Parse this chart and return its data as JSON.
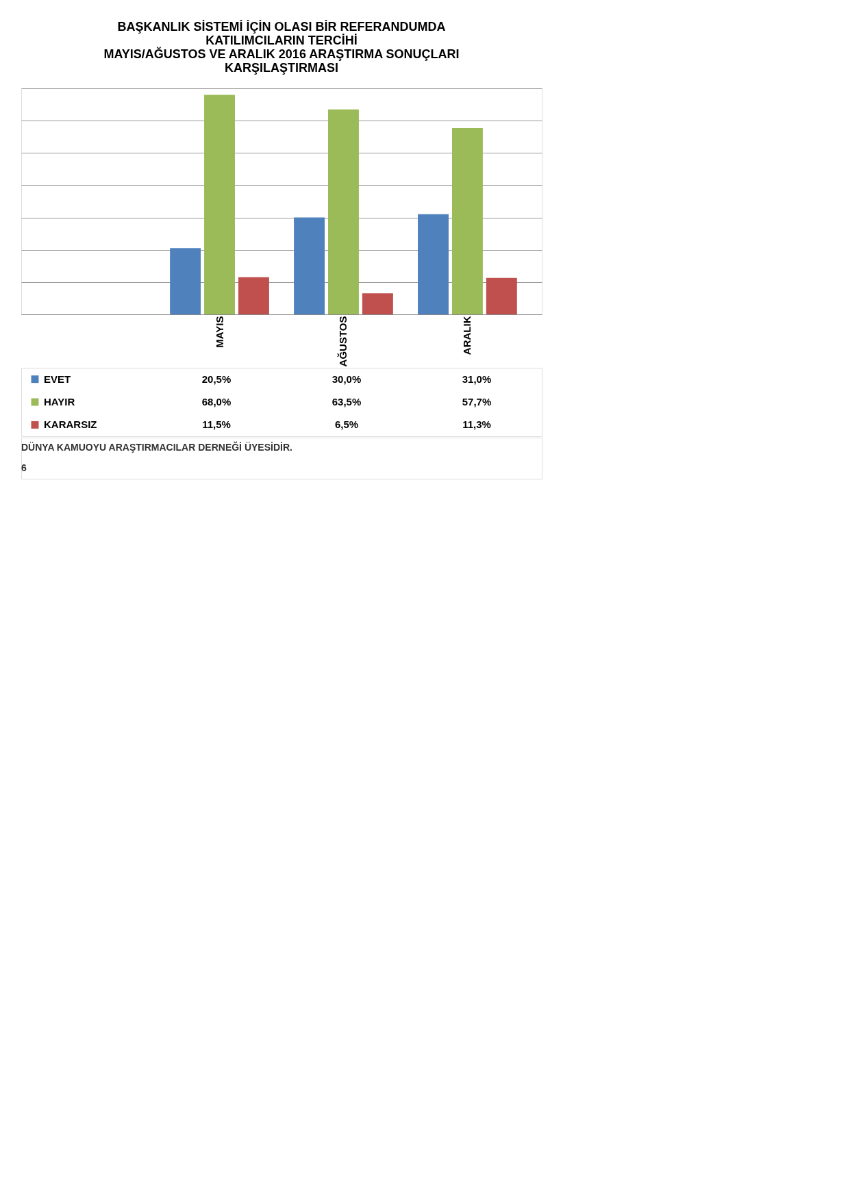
{
  "chart_data": {
    "type": "bar",
    "title": "BAŞKANLIK SİSTEMİ İÇİN OLASI BİR REFERANDUMDA\nKATILIMCILARIN TERCİHİ\nMAYIS/AĞUSTOS VE ARALIK 2016 ARAŞTIRMA SONUÇLARI\nKARŞILAŞTIRMASI",
    "categories": [
      "MAYIS",
      "AĞUSTOS",
      "ARALIK"
    ],
    "series": [
      {
        "name": "EVET",
        "color": "#4f81bd",
        "values": [
          20.5,
          30.0,
          31.0
        ],
        "value_labels": [
          "20,5%",
          "30,0%",
          "31,0%"
        ]
      },
      {
        "name": "HAYIR",
        "color": "#9bbb59",
        "values": [
          68.0,
          63.5,
          57.7
        ],
        "value_labels": [
          "68,0%",
          "63,5%",
          "57,7%"
        ]
      },
      {
        "name": "KARARSIZ",
        "color": "#c0504d",
        "values": [
          11.5,
          6.5,
          11.3
        ],
        "value_labels": [
          "11,5%",
          "6,5%",
          "11,3%"
        ]
      }
    ],
    "ylim": [
      0,
      70
    ],
    "yticks": [
      {
        "value": 0,
        "label": null
      },
      {
        "value": 10,
        "label": null
      },
      {
        "value": 20,
        "label": null
      },
      {
        "value": 30,
        "label": null
      },
      {
        "value": 40,
        "label": null
      },
      {
        "value": 50,
        "label": null
      },
      {
        "value": 60,
        "label": null
      },
      {
        "value": 70,
        "label": null
      }
    ],
    "grid": "y",
    "tick_labels": "x",
    "legend": "bottom left",
    "annotations": [
      "DÜNYA KAMUOYU ARAŞTIRMACILAR DERNEĞİ ÜYESİDİR.",
      "6"
    ]
  }
}
